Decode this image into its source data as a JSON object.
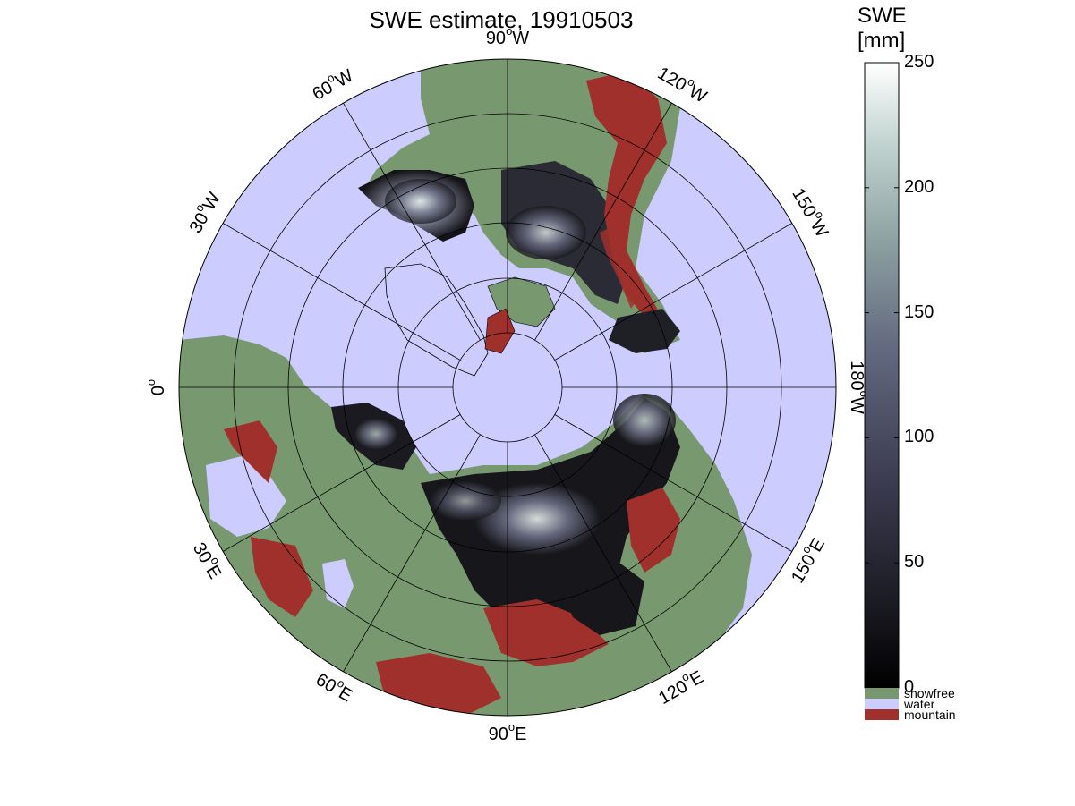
{
  "title": "SWE estimate, 19910503",
  "colors": {
    "ocean": "#ccccff",
    "land_snowfree": "#78996f",
    "mountain": "#a0302c",
    "snow_dark": "#111116",
    "snow_mid": "#4a4a62",
    "snow_light": "#b4c9c6",
    "grid": "#000000"
  },
  "meridian_labels": [
    {
      "text": "90",
      "unit": "W"
    },
    {
      "text": "120",
      "unit": "W"
    },
    {
      "text": "150",
      "unit": "W"
    },
    {
      "text": "180",
      "unit": "W"
    },
    {
      "text": "150",
      "unit": "E"
    },
    {
      "text": "120",
      "unit": "E"
    },
    {
      "text": "90",
      "unit": "E"
    },
    {
      "text": "60",
      "unit": "E"
    },
    {
      "text": "30",
      "unit": "E"
    },
    {
      "text": "0",
      "unit": ""
    },
    {
      "text": "30",
      "unit": "W"
    },
    {
      "text": "60",
      "unit": "W"
    }
  ],
  "colorbar": {
    "title_line1": "SWE",
    "title_line2": "[mm]",
    "ticks": [
      "250",
      "200",
      "150",
      "100",
      "50",
      "0"
    ],
    "range": [
      0,
      250
    ],
    "categories": [
      {
        "label": "snowfree",
        "color": "#78996f"
      },
      {
        "label": "water",
        "color": "#ccccff"
      },
      {
        "label": "mountain",
        "color": "#a0302c"
      }
    ]
  }
}
